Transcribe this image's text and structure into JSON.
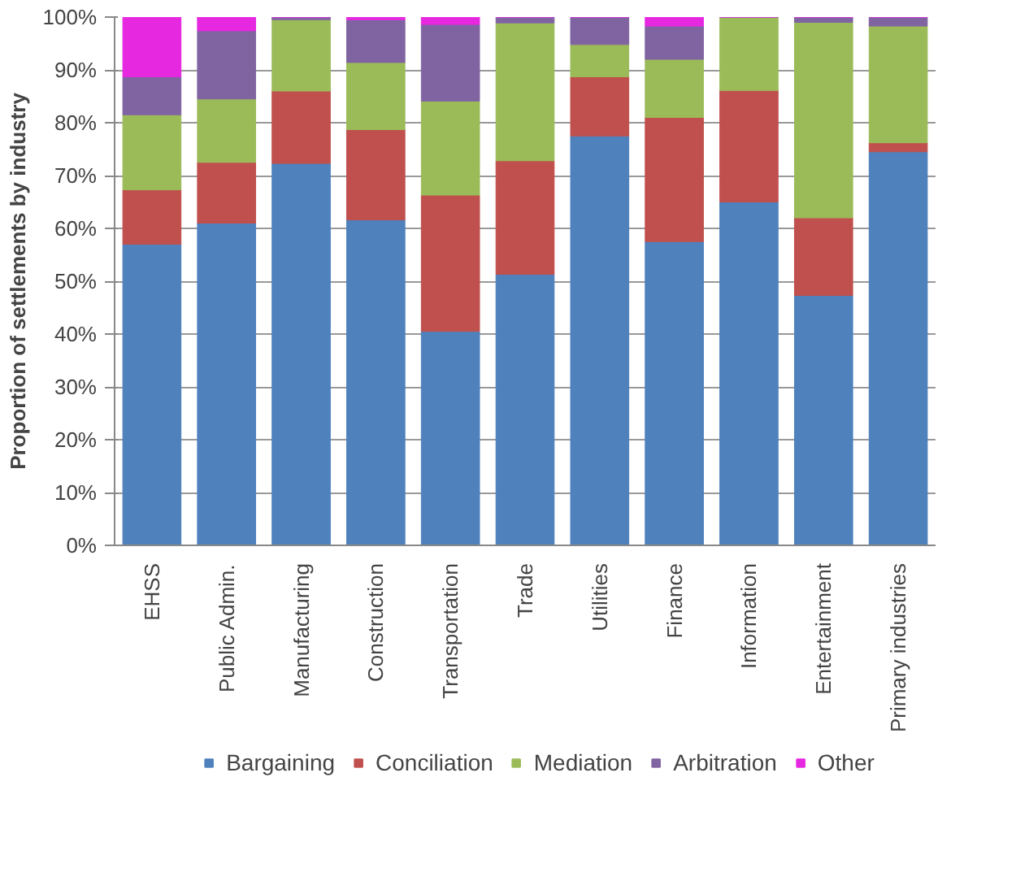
{
  "chart_data": {
    "type": "bar",
    "stacked": true,
    "ylabel": "Proportion of settlements by industry",
    "categories": [
      "EHSS",
      "Public Admin.",
      "Manufacturing",
      "Construction",
      "Transportation",
      "Trade",
      "Utilities",
      "Finance",
      "Information",
      "Entertainment",
      "Primary industries"
    ],
    "series": [
      {
        "name": "Bargaining",
        "color": "#4f81bd",
        "values": [
          57,
          61,
          72.3,
          61.6,
          40.5,
          51.3,
          77.5,
          57.5,
          65,
          47.3,
          74.5
        ]
      },
      {
        "name": "Conciliation",
        "color": "#c0504d",
        "values": [
          10.3,
          11.5,
          13.7,
          17.1,
          25.8,
          21.5,
          11.2,
          23.5,
          21.1,
          14.7,
          1.7
        ]
      },
      {
        "name": "Mediation",
        "color": "#9bbb59",
        "values": [
          14.2,
          12,
          13.5,
          12.7,
          17.8,
          26.1,
          6.1,
          11,
          13.9,
          37,
          22.1
        ]
      },
      {
        "name": "Arbitration",
        "color": "#8064a2",
        "values": [
          7.2,
          12.9,
          0.5,
          8.1,
          14.5,
          1.1,
          5.2,
          6.3,
          0,
          1,
          1.7
        ]
      },
      {
        "name": "Other",
        "color": "#e628e0",
        "values": [
          11.3,
          2.6,
          0,
          0.5,
          1.4,
          0,
          0,
          1.7,
          0,
          0,
          0
        ]
      }
    ],
    "ylim": [
      0,
      100
    ],
    "yticks": [
      {
        "value": 0,
        "label": "0%"
      },
      {
        "value": 10,
        "label": "10%"
      },
      {
        "value": 20,
        "label": "20%"
      },
      {
        "value": 30,
        "label": "30%"
      },
      {
        "value": 40,
        "label": "40%"
      },
      {
        "value": 50,
        "label": "50%"
      },
      {
        "value": 60,
        "label": "60%"
      },
      {
        "value": 70,
        "label": "70%"
      },
      {
        "value": 80,
        "label": "80%"
      },
      {
        "value": 90,
        "label": "90%"
      },
      {
        "value": 100,
        "label": "100%"
      }
    ],
    "grid": "y",
    "legend": "bottom"
  }
}
